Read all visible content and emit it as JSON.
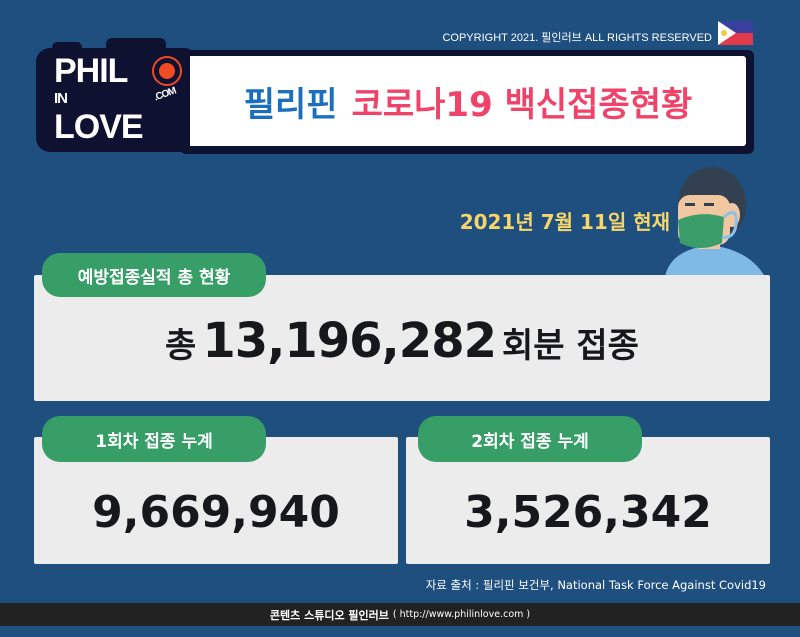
{
  "header": {
    "copyright": "COPYRIGHT 2021. 필인러브 ALL RIGHTS RESERVED",
    "flag_icon": "philippines-flag"
  },
  "logo": {
    "line1": "PHIL",
    "line2": "IN",
    "line3": "LOVE",
    "domain": ".COM"
  },
  "title": {
    "part1": "필리핀",
    "part2": "코로나19 백신접종현황",
    "color1": "#1c6fbd",
    "color2": "#f0436a"
  },
  "date": "2021년 7월 11일 현재",
  "total": {
    "label": "예방접종실적 총 현황",
    "prefix": "총",
    "value": "13,196,282",
    "suffix": "회분 접종"
  },
  "first_dose": {
    "label": "1회차 접종 누계",
    "value": "9,669,940"
  },
  "second_dose": {
    "label": "2회차 접종 누계",
    "value": "3,526,342"
  },
  "source": "자료 출처 : 필리핀 보건부, National Task Force Against Covid19",
  "footer": {
    "studio": "콘텐츠 스튜디오 필인러브",
    "url": "( http://www.philinlove.com )"
  },
  "colors": {
    "background": "#1e4f7f",
    "pill": "#389e68",
    "date": "#f6d66b"
  }
}
